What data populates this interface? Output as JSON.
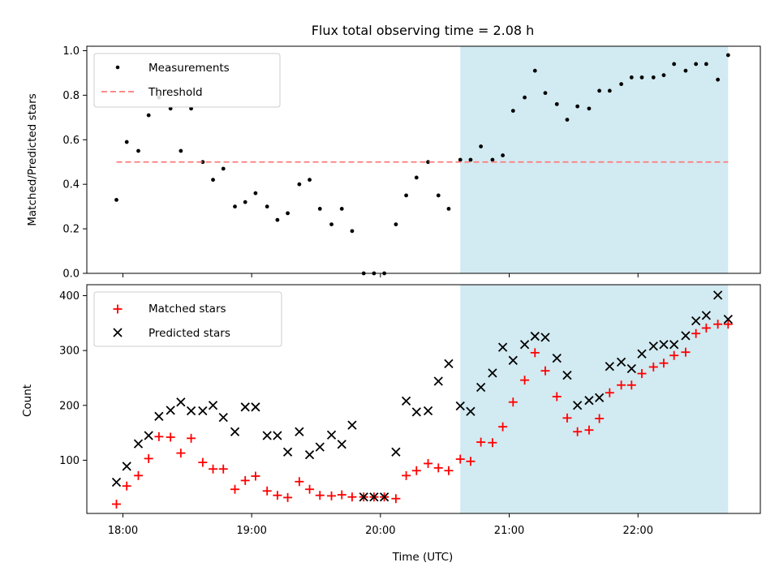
{
  "chart_data": [
    {
      "type": "scatter",
      "title": "Flux total observing time = 2.08 h",
      "ylabel": "Matched/Predicted stars",
      "xlabel": "",
      "xlim": [
        17.72,
        22.95
      ],
      "ylim": [
        0.0,
        1.02
      ],
      "yticks": [
        0.0,
        0.2,
        0.4,
        0.6,
        0.8,
        1.0
      ],
      "ytick_labels": [
        "0.0",
        "0.2",
        "0.4",
        "0.6",
        "0.8",
        "1.0"
      ],
      "xticks": [
        18,
        19,
        20,
        21,
        22
      ],
      "highlight_span": {
        "from": 20.62,
        "to": 22.7,
        "color": "#add8e6"
      },
      "grid": false,
      "legend_position": "top-left",
      "series": [
        {
          "name": "Measurements",
          "kind": "points",
          "color": "#000000",
          "x": [
            17.95,
            18.03,
            18.12,
            18.2,
            18.28,
            18.37,
            18.45,
            18.53,
            18.62,
            18.7,
            18.78,
            18.87,
            18.95,
            19.03,
            19.12,
            19.2,
            19.28,
            19.37,
            19.45,
            19.53,
            19.62,
            19.7,
            19.78,
            19.87,
            19.95,
            20.03,
            20.12,
            20.2,
            20.28,
            20.37,
            20.45,
            20.53,
            20.62,
            20.7,
            20.78,
            20.87,
            20.95,
            21.03,
            21.12,
            21.2,
            21.28,
            21.37,
            21.45,
            21.53,
            21.62,
            21.7,
            21.78,
            21.87,
            21.95,
            22.03,
            22.12,
            22.2,
            22.28,
            22.37,
            22.45,
            22.53,
            22.62,
            22.7
          ],
          "y": [
            0.33,
            0.59,
            0.55,
            0.71,
            0.79,
            0.74,
            0.55,
            0.74,
            0.5,
            0.42,
            0.47,
            0.3,
            0.32,
            0.36,
            0.3,
            0.24,
            0.27,
            0.4,
            0.42,
            0.29,
            0.22,
            0.29,
            0.19,
            0.0,
            0.0,
            0.0,
            0.22,
            0.35,
            0.43,
            0.5,
            0.35,
            0.29,
            0.51,
            0.51,
            0.57,
            0.51,
            0.53,
            0.73,
            0.79,
            0.91,
            0.81,
            0.76,
            0.69,
            0.75,
            0.74,
            0.82,
            0.82,
            0.85,
            0.88,
            0.88,
            0.88,
            0.89,
            0.94,
            0.91,
            0.94,
            0.94,
            0.87,
            0.98
          ]
        },
        {
          "name": "Threshold",
          "kind": "dashed-line",
          "color": "#ff7b7b",
          "x": [
            17.95,
            22.7
          ],
          "y": [
            0.5,
            0.5
          ]
        }
      ]
    },
    {
      "type": "scatter",
      "title": "",
      "ylabel": "Count",
      "xlabel": "Time (UTC)",
      "xlim": [
        17.72,
        22.95
      ],
      "ylim": [
        3,
        420
      ],
      "yticks": [
        100,
        200,
        300,
        400
      ],
      "ytick_labels": [
        "100",
        "200",
        "300",
        "400"
      ],
      "xticks": [
        18,
        19,
        20,
        21,
        22
      ],
      "xtick_labels": [
        "18:00",
        "19:00",
        "20:00",
        "21:00",
        "22:00"
      ],
      "highlight_span": {
        "from": 20.62,
        "to": 22.7,
        "color": "#add8e6"
      },
      "grid": false,
      "legend_position": "top-left",
      "series": [
        {
          "name": "Matched stars",
          "kind": "plus",
          "color": "#ff0000",
          "x": [
            17.95,
            18.03,
            18.12,
            18.2,
            18.28,
            18.37,
            18.45,
            18.53,
            18.62,
            18.7,
            18.78,
            18.87,
            18.95,
            19.03,
            19.12,
            19.2,
            19.28,
            19.37,
            19.45,
            19.53,
            19.62,
            19.7,
            19.78,
            19.87,
            19.95,
            20.03,
            20.12,
            20.2,
            20.28,
            20.37,
            20.45,
            20.53,
            20.62,
            20.7,
            20.78,
            20.87,
            20.95,
            21.03,
            21.12,
            21.2,
            21.28,
            21.37,
            21.45,
            21.53,
            21.62,
            21.7,
            21.78,
            21.87,
            21.95,
            22.03,
            22.12,
            22.2,
            22.28,
            22.37,
            22.45,
            22.53,
            22.62,
            22.7
          ],
          "y": [
            20,
            53,
            72,
            103,
            143,
            142,
            113,
            140,
            96,
            84,
            84,
            47,
            63,
            71,
            44,
            36,
            32,
            61,
            47,
            36,
            35,
            37,
            33,
            33,
            33,
            33,
            30,
            72,
            81,
            94,
            86,
            81,
            102,
            98,
            133,
            132,
            161,
            206,
            246,
            296,
            263,
            216,
            177,
            152,
            155,
            176,
            223,
            237,
            237,
            258,
            270,
            277,
            291,
            297,
            331,
            341,
            348,
            348
          ]
        },
        {
          "name": "Predicted stars",
          "kind": "x",
          "color": "#000000",
          "x": [
            17.95,
            18.03,
            18.12,
            18.2,
            18.28,
            18.37,
            18.45,
            18.53,
            18.62,
            18.7,
            18.78,
            18.87,
            18.95,
            19.03,
            19.12,
            19.2,
            19.28,
            19.37,
            19.45,
            19.53,
            19.62,
            19.7,
            19.78,
            19.87,
            19.95,
            20.03,
            20.12,
            20.2,
            20.28,
            20.37,
            20.45,
            20.53,
            20.62,
            20.7,
            20.78,
            20.87,
            20.95,
            21.03,
            21.12,
            21.2,
            21.28,
            21.37,
            21.45,
            21.53,
            21.62,
            21.7,
            21.78,
            21.87,
            21.95,
            22.03,
            22.12,
            22.2,
            22.28,
            22.37,
            22.45,
            22.53,
            22.62,
            22.7
          ],
          "y": [
            60,
            89,
            130,
            145,
            180,
            191,
            206,
            190,
            190,
            200,
            178,
            152,
            197,
            197,
            145,
            145,
            115,
            152,
            110,
            124,
            146,
            129,
            164,
            33,
            33,
            33,
            115,
            208,
            188,
            190,
            244,
            276,
            199,
            189,
            233,
            259,
            306,
            282,
            311,
            326,
            324,
            286,
            255,
            200,
            209,
            214,
            271,
            279,
            267,
            294,
            308,
            311,
            311,
            327,
            354,
            364,
            401,
            357
          ]
        }
      ]
    }
  ]
}
